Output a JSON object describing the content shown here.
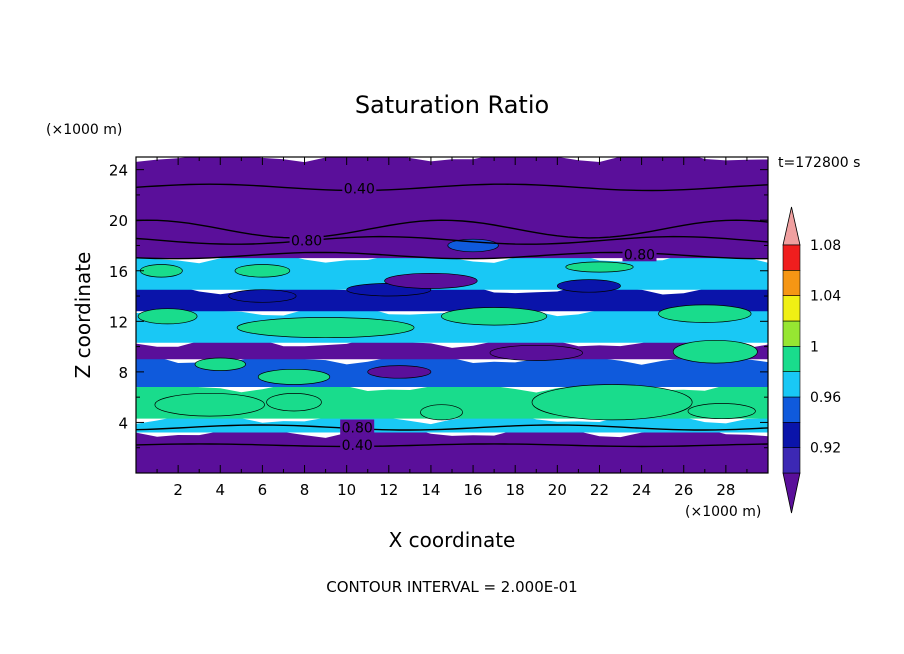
{
  "chart_data": {
    "type": "heatmap",
    "title": "Saturation Ratio",
    "xlabel": "X coordinate",
    "ylabel": "Z coordinate",
    "x_unit": "(×1000 m)",
    "y_unit": "(×1000 m)",
    "time_label": "t=172800 s",
    "footer": "CONTOUR INTERVAL = 2.000E-01",
    "xlim": [
      0,
      30
    ],
    "ylim": [
      0,
      25
    ],
    "x_ticks": [
      "2",
      "4",
      "6",
      "8",
      "10",
      "12",
      "14",
      "16",
      "18",
      "20",
      "22",
      "24",
      "26",
      "28"
    ],
    "y_ticks": [
      "4",
      "8",
      "12",
      "16",
      "20",
      "24"
    ],
    "colorbar": {
      "levels": [
        0.9,
        0.92,
        0.94,
        0.96,
        0.98,
        1.0,
        1.02,
        1.04,
        1.06,
        1.08,
        1.1
      ],
      "labels": [
        "0.92",
        "0.96",
        "1",
        "1.04",
        "1.08"
      ],
      "colors": [
        "#5a0f9a",
        "#3c28b4",
        "#0a14aa",
        "#0f5adc",
        "#19c8f5",
        "#19dc8c",
        "#96e632",
        "#f0f014",
        "#f59614",
        "#f01e1e",
        "#f0a0a0"
      ],
      "extend": "both"
    },
    "contour_labels": [
      {
        "text": "0.40",
        "x": 10.6,
        "z": 22.5
      },
      {
        "text": "0.80",
        "x": 8.1,
        "z": 18.4
      },
      {
        "text": "0.80",
        "x": 23.9,
        "z": 17.3
      },
      {
        "text": "0.80",
        "x": 10.5,
        "z": 3.6
      },
      {
        "text": "0.40",
        "x": 10.5,
        "z": 2.2
      }
    ],
    "bands": [
      {
        "z0": 0.0,
        "z1": 3.2,
        "value": 0.9
      },
      {
        "z0": 3.2,
        "z1": 4.3,
        "value": 0.98
      },
      {
        "z0": 4.3,
        "z1": 6.8,
        "value": 1.0
      },
      {
        "z0": 6.8,
        "z1": 9.0,
        "value": 0.97
      },
      {
        "z0": 9.0,
        "z1": 10.3,
        "value": 0.91
      },
      {
        "z0": 10.3,
        "z1": 12.8,
        "value": 0.99
      },
      {
        "z0": 12.8,
        "z1": 14.5,
        "value": 0.95
      },
      {
        "z0": 14.5,
        "z1": 17.0,
        "value": 0.98
      },
      {
        "z0": 17.0,
        "z1": 25.0,
        "value": 0.9
      }
    ],
    "blobs": [
      {
        "cx": 3.5,
        "cz": 5.4,
        "rx": 2.6,
        "rz": 0.9,
        "value": 1.0
      },
      {
        "cx": 7.5,
        "cz": 5.6,
        "rx": 1.3,
        "rz": 0.7,
        "value": 1.0
      },
      {
        "cx": 14.5,
        "cz": 4.8,
        "rx": 1.0,
        "rz": 0.6,
        "value": 1.0
      },
      {
        "cx": 22.6,
        "cz": 5.6,
        "rx": 3.8,
        "rz": 1.4,
        "value": 1.0
      },
      {
        "cx": 27.8,
        "cz": 4.9,
        "rx": 1.6,
        "rz": 0.6,
        "value": 1.0
      },
      {
        "cx": 7.5,
        "cz": 7.6,
        "rx": 1.7,
        "rz": 0.6,
        "value": 1.0
      },
      {
        "cx": 4.0,
        "cz": 8.6,
        "rx": 1.2,
        "rz": 0.5,
        "value": 1.0
      },
      {
        "cx": 12.5,
        "cz": 8.0,
        "rx": 1.5,
        "rz": 0.5,
        "value": 0.91
      },
      {
        "cx": 19.0,
        "cz": 9.5,
        "rx": 2.2,
        "rz": 0.6,
        "value": 0.91
      },
      {
        "cx": 27.5,
        "cz": 9.6,
        "rx": 2.0,
        "rz": 0.9,
        "value": 1.0
      },
      {
        "cx": 9.0,
        "cz": 11.5,
        "rx": 4.2,
        "rz": 0.8,
        "value": 1.0
      },
      {
        "cx": 17.0,
        "cz": 12.4,
        "rx": 2.5,
        "rz": 0.7,
        "value": 1.0
      },
      {
        "cx": 27.0,
        "cz": 12.6,
        "rx": 2.2,
        "rz": 0.7,
        "value": 1.0
      },
      {
        "cx": 1.5,
        "cz": 12.4,
        "rx": 1.4,
        "rz": 0.6,
        "value": 1.0
      },
      {
        "cx": 6.0,
        "cz": 14.0,
        "rx": 1.6,
        "rz": 0.5,
        "value": 0.93
      },
      {
        "cx": 12.0,
        "cz": 14.5,
        "rx": 2.0,
        "rz": 0.5,
        "value": 0.95
      },
      {
        "cx": 1.2,
        "cz": 16.0,
        "rx": 1.0,
        "rz": 0.5,
        "value": 1.0
      },
      {
        "cx": 6.0,
        "cz": 16.0,
        "rx": 1.3,
        "rz": 0.5,
        "value": 1.0
      },
      {
        "cx": 22.0,
        "cz": 16.3,
        "rx": 1.6,
        "rz": 0.4,
        "value": 1.0
      },
      {
        "cx": 14.0,
        "cz": 15.2,
        "rx": 2.2,
        "rz": 0.6,
        "value": 0.91
      },
      {
        "cx": 16.0,
        "cz": 18.0,
        "rx": 1.2,
        "rz": 0.5,
        "value": 0.96
      },
      {
        "cx": 21.5,
        "cz": 14.8,
        "rx": 1.5,
        "rz": 0.5,
        "value": 0.95
      }
    ],
    "contours": [
      {
        "z": 22.6,
        "amp": 0.25
      },
      {
        "z": 19.3,
        "amp": 0.7
      },
      {
        "z": 18.4,
        "amp": 0.3
      },
      {
        "z": 17.2,
        "amp": 0.25
      },
      {
        "z": 3.6,
        "amp": 0.2
      },
      {
        "z": 2.2,
        "amp": 0.1
      }
    ]
  }
}
